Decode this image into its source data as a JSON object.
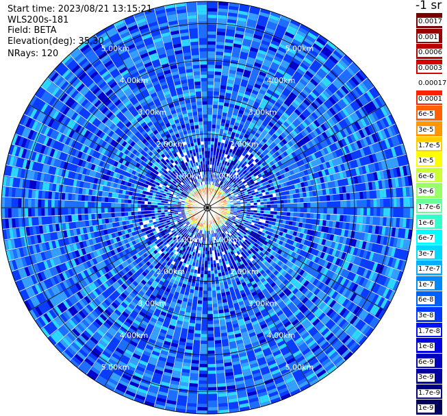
{
  "header": {
    "start_time": "Start time: 2023/08/21 13:15:21",
    "instrument": "WLS200s-181",
    "field": "Field: BETA",
    "elevation": "Elevation(deg): 35.30",
    "nrays": "NRays: 120"
  },
  "colorbar": {
    "unit_label": "-1 sr",
    "tick_labels": [
      "0.0017",
      "0.001",
      "0.0006",
      "0.0003",
      "0.00017",
      "0.0001",
      "6e-5",
      "3e-5",
      "1.7e-5",
      "1e-5",
      "6e-6",
      "3e-6",
      "1.7e-6",
      "1e-6",
      "6e-7",
      "3e-7",
      "1.7e-7",
      "1e-7",
      "6e-8",
      "3e-8",
      "1.7e-8",
      "1e-8",
      "6e-9",
      "3e-9",
      "1.7e-9",
      "1e-9"
    ],
    "colors": [
      "#7a0000",
      "#9a0000",
      "#b80000",
      "#d40000",
      "#ffffff",
      "#ff2000",
      "#ff6000",
      "#ff9800",
      "#ffcc00",
      "#ffff00",
      "#ccff33",
      "#99ff66",
      "#66ff99",
      "#33ffcc",
      "#00ffff",
      "#00d8ff",
      "#00b0ff",
      "#0088ff",
      "#0060ff",
      "#0038ff",
      "#0010ff",
      "#0000e0",
      "#0000c0",
      "#0000a0",
      "#000080",
      "#000060"
    ]
  },
  "chart_data": {
    "type": "heatmap",
    "projection": "polar-ppi",
    "nrays": 120,
    "range_rings_km": [
      1,
      2,
      3,
      4,
      5
    ],
    "ring_labels": [
      "1.00km",
      "2.00km",
      "3.00km",
      "4.00km",
      "5.00km"
    ],
    "max_range_km": 5.6,
    "spoke_step_deg": 30,
    "label_azimuths_deg": [
      30,
      150,
      210,
      330
    ],
    "values_description_scale": "log",
    "near_field_peak": "3e-5",
    "far_field_typical": "3e-8"
  }
}
